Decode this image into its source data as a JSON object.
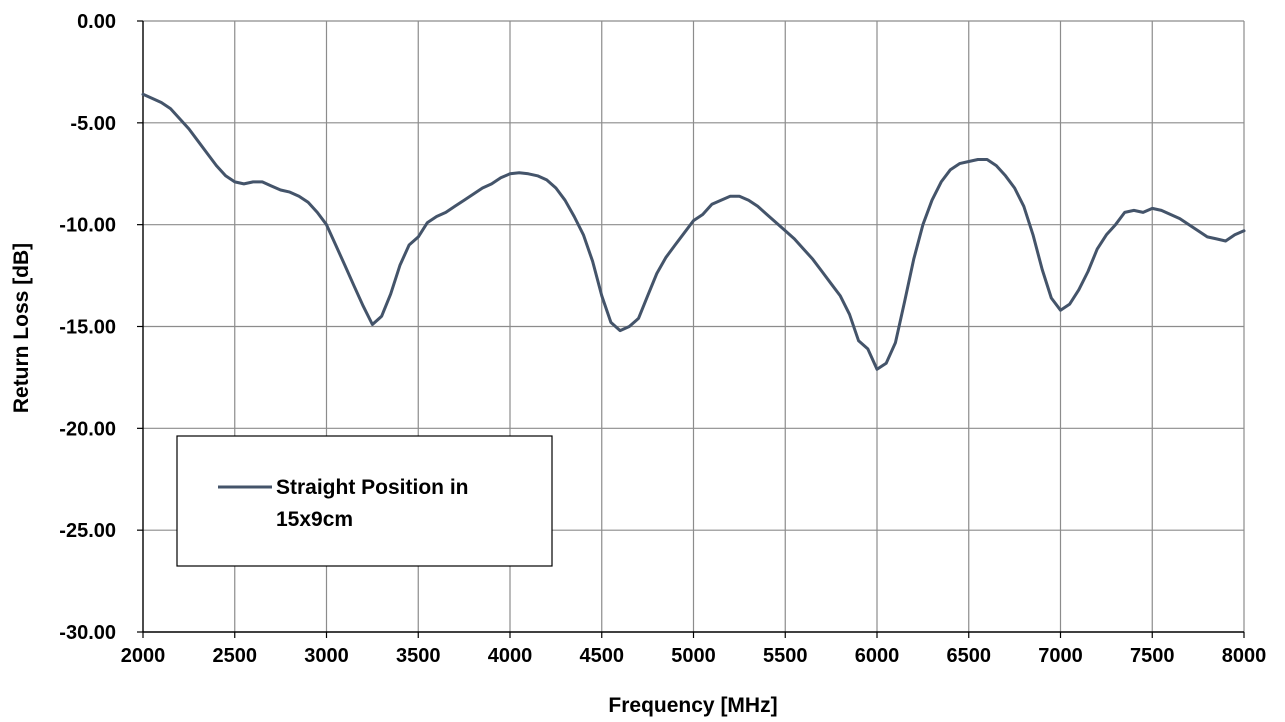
{
  "chart_data": {
    "type": "line",
    "xlabel": "Frequency [MHz]",
    "ylabel": "Return Loss [dB]",
    "xlim": [
      2000,
      8000
    ],
    "ylim": [
      -30,
      0
    ],
    "x_ticks": [
      "2000",
      "2500",
      "3000",
      "3500",
      "4000",
      "4500",
      "5000",
      "5500",
      "6000",
      "6500",
      "7000",
      "7500",
      "8000"
    ],
    "y_ticks": [
      "0.00",
      "-5.00",
      "-10.00",
      "-15.00",
      "-20.00",
      "-25.00",
      "-30.00"
    ],
    "grid": true,
    "legend_position": "lower-left",
    "line_color": "#44546a",
    "series": [
      {
        "name_lines": [
          "Straight Position in",
          "15x9cm"
        ],
        "x": [
          2000,
          2050,
          2100,
          2150,
          2200,
          2250,
          2300,
          2350,
          2400,
          2450,
          2500,
          2550,
          2600,
          2650,
          2700,
          2750,
          2800,
          2850,
          2900,
          2950,
          3000,
          3050,
          3100,
          3150,
          3200,
          3250,
          3300,
          3350,
          3400,
          3450,
          3500,
          3550,
          3600,
          3650,
          3700,
          3750,
          3800,
          3850,
          3900,
          3950,
          4000,
          4050,
          4100,
          4150,
          4200,
          4250,
          4300,
          4350,
          4400,
          4450,
          4500,
          4550,
          4600,
          4650,
          4700,
          4750,
          4800,
          4850,
          4900,
          4950,
          5000,
          5050,
          5100,
          5150,
          5200,
          5250,
          5300,
          5350,
          5400,
          5450,
          5500,
          5550,
          5600,
          5650,
          5700,
          5750,
          5800,
          5850,
          5900,
          5950,
          6000,
          6050,
          6100,
          6150,
          6200,
          6250,
          6300,
          6350,
          6400,
          6450,
          6500,
          6550,
          6600,
          6650,
          6700,
          6750,
          6800,
          6850,
          6900,
          6950,
          7000,
          7050,
          7100,
          7150,
          7200,
          7250,
          7300,
          7350,
          7400,
          7450,
          7500,
          7550,
          7600,
          7650,
          7700,
          7750,
          7800,
          7850,
          7900,
          7950,
          8000
        ],
        "y": [
          -3.6,
          -3.8,
          -4.0,
          -4.3,
          -4.8,
          -5.3,
          -5.9,
          -6.5,
          -7.1,
          -7.6,
          -7.9,
          -8.0,
          -7.9,
          -7.9,
          -8.1,
          -8.3,
          -8.4,
          -8.6,
          -8.9,
          -9.4,
          -10.0,
          -11.0,
          -12.0,
          -13.0,
          -14.0,
          -14.9,
          -14.5,
          -13.4,
          -12.0,
          -11.0,
          -10.6,
          -9.9,
          -9.6,
          -9.4,
          -9.1,
          -8.8,
          -8.5,
          -8.2,
          -8.0,
          -7.7,
          -7.5,
          -7.45,
          -7.5,
          -7.6,
          -7.8,
          -8.2,
          -8.8,
          -9.6,
          -10.5,
          -11.8,
          -13.5,
          -14.8,
          -15.2,
          -15.0,
          -14.6,
          -13.5,
          -12.4,
          -11.6,
          -11.0,
          -10.4,
          -9.8,
          -9.5,
          -9.0,
          -8.8,
          -8.6,
          -8.6,
          -8.8,
          -9.1,
          -9.5,
          -9.9,
          -10.3,
          -10.7,
          -11.2,
          -11.7,
          -12.3,
          -12.9,
          -13.5,
          -14.4,
          -15.7,
          -16.1,
          -17.1,
          -16.8,
          -15.8,
          -13.8,
          -11.7,
          -10.0,
          -8.8,
          -7.9,
          -7.3,
          -7.0,
          -6.9,
          -6.8,
          -6.8,
          -7.1,
          -7.6,
          -8.2,
          -9.1,
          -10.5,
          -12.2,
          -13.6,
          -14.2,
          -13.9,
          -13.2,
          -12.3,
          -11.2,
          -10.5,
          -10.0,
          -9.4,
          -9.3,
          -9.4,
          -9.2,
          -9.3,
          -9.5,
          -9.7,
          -10.0,
          -10.3,
          -10.6,
          -10.7,
          -10.8,
          -10.5,
          -10.3
        ]
      }
    ]
  }
}
